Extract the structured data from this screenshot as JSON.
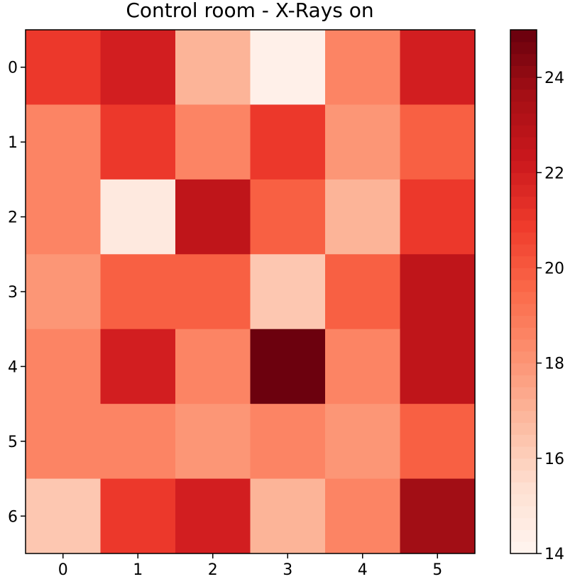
{
  "chart_data": {
    "type": "heatmap",
    "title": "Control room - X-Rays on",
    "xlabel": "",
    "ylabel": "",
    "x_ticks": [
      "0",
      "1",
      "2",
      "3",
      "4",
      "5"
    ],
    "y_ticks": [
      "0",
      "1",
      "2",
      "3",
      "4",
      "5",
      "6"
    ],
    "values": [
      [
        21.0,
        22.0,
        17.0,
        14.3,
        18.6,
        22.0
      ],
      [
        18.6,
        21.0,
        18.6,
        21.0,
        18.0,
        19.8
      ],
      [
        18.6,
        14.8,
        22.7,
        19.8,
        17.0,
        21.0
      ],
      [
        18.0,
        19.8,
        19.8,
        16.3,
        19.8,
        22.7
      ],
      [
        18.6,
        22.0,
        18.6,
        24.9,
        18.6,
        22.7
      ],
      [
        18.6,
        18.6,
        18.0,
        18.6,
        18.0,
        19.8
      ],
      [
        16.3,
        21.0,
        22.0,
        17.0,
        18.6,
        23.7
      ]
    ],
    "colormap": "Reds",
    "colorbar": {
      "min": 14,
      "max": 25,
      "ticks": [
        "14",
        "16",
        "18",
        "20",
        "22",
        "24"
      ]
    },
    "grid": false
  }
}
